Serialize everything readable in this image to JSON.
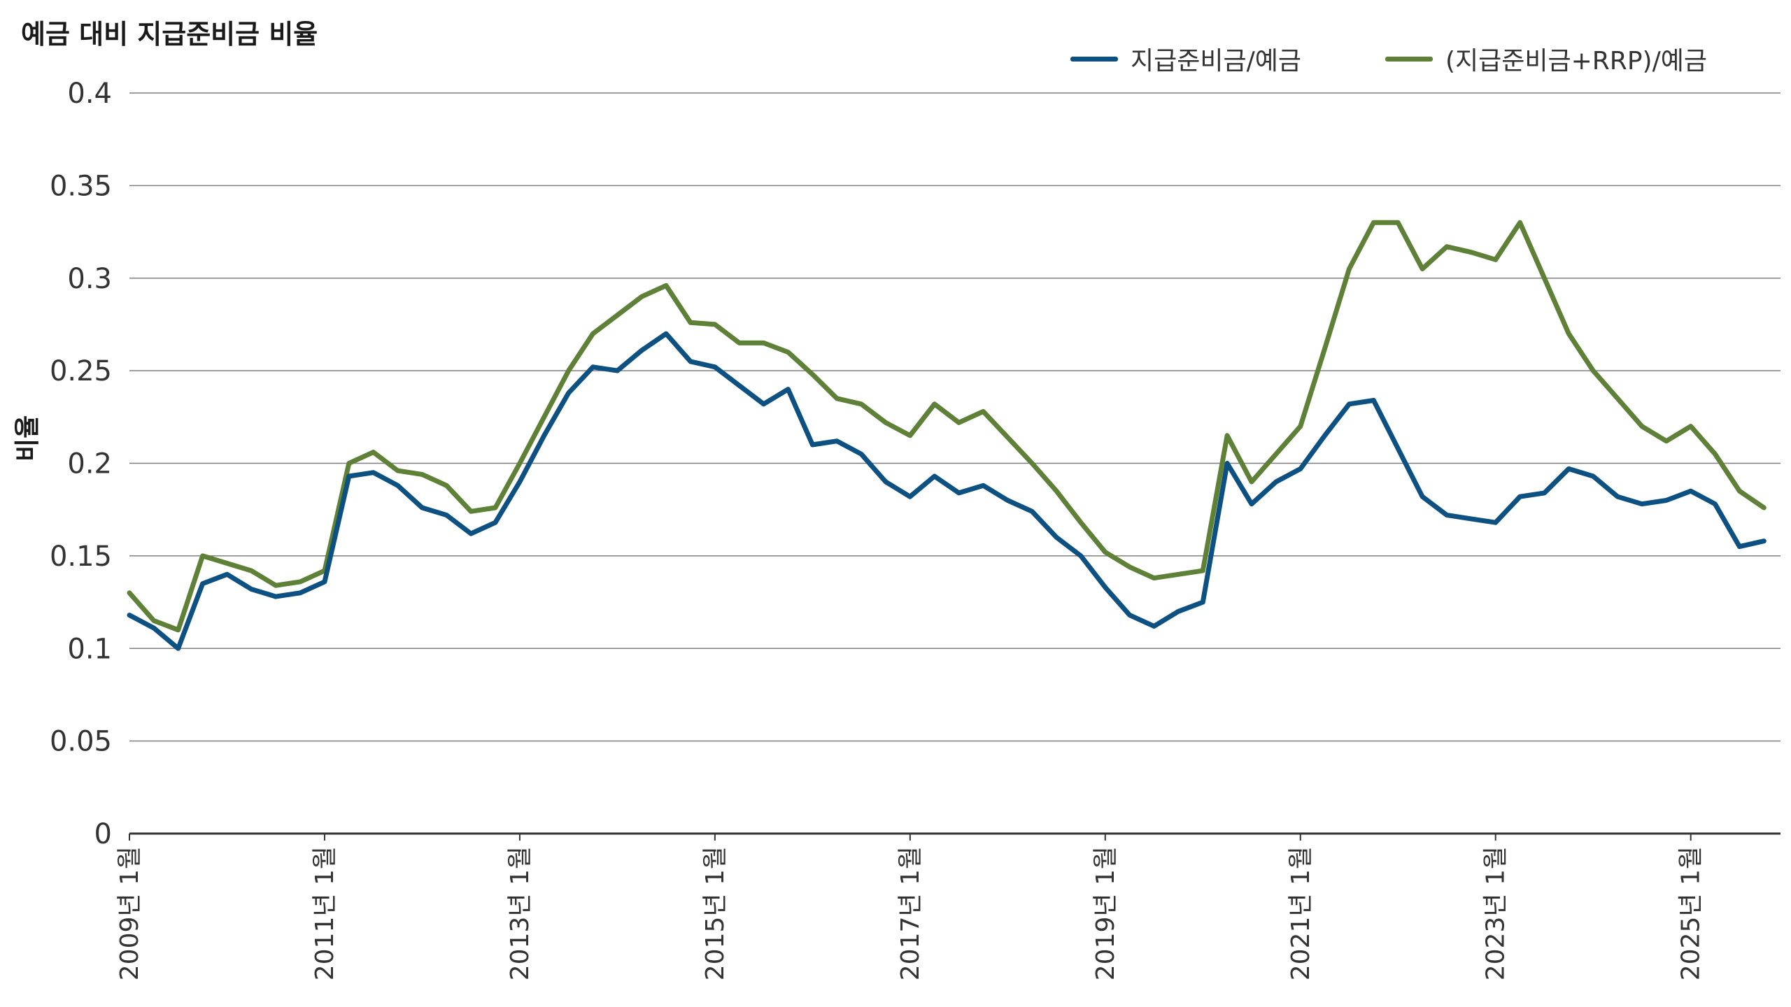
{
  "chart_data": {
    "type": "line",
    "title": "예금 대비 지급준비금 비율",
    "ylabel": "비율",
    "xlabel": "",
    "ylim": [
      0,
      0.4
    ],
    "yticks": [
      "0",
      "0.05",
      "0.1",
      "0.15",
      "0.2",
      "0.25",
      "0.3",
      "0.35",
      "0.4"
    ],
    "xtick_labels": [
      "2009년 1월",
      "2011년 1월",
      "2013년 1월",
      "2015년 1월",
      "2017년 1월",
      "2019년 1월",
      "2021년 1월",
      "2023년 1월",
      "2025년 1월"
    ],
    "grid": "horizontal",
    "legend_position": "top-right",
    "colors": {
      "reserves": "#0d5082",
      "reserves_rrp": "#5e8037",
      "grid": "#7f7f7f"
    },
    "x": [
      "2009-01",
      "2009-04",
      "2009-07",
      "2009-10",
      "2010-01",
      "2010-04",
      "2010-07",
      "2010-10",
      "2011-01",
      "2011-04",
      "2011-07",
      "2011-10",
      "2012-01",
      "2012-04",
      "2012-07",
      "2012-10",
      "2013-01",
      "2013-04",
      "2013-07",
      "2013-10",
      "2014-01",
      "2014-04",
      "2014-07",
      "2014-10",
      "2015-01",
      "2015-04",
      "2015-07",
      "2015-10",
      "2016-01",
      "2016-04",
      "2016-07",
      "2016-10",
      "2017-01",
      "2017-04",
      "2017-07",
      "2017-10",
      "2018-01",
      "2018-04",
      "2018-07",
      "2018-10",
      "2019-01",
      "2019-04",
      "2019-07",
      "2019-10",
      "2020-01",
      "2020-04",
      "2020-07",
      "2020-10",
      "2021-01",
      "2021-04",
      "2021-07",
      "2021-10",
      "2022-01",
      "2022-04",
      "2022-07",
      "2022-10",
      "2023-01",
      "2023-04",
      "2023-07",
      "2023-10",
      "2024-01",
      "2024-04",
      "2024-07",
      "2024-10",
      "2025-01",
      "2025-04",
      "2025-07",
      "2025-10"
    ],
    "series": [
      {
        "name": "지급준비금/예금",
        "values": [
          0.118,
          0.111,
          0.1,
          0.135,
          0.14,
          0.132,
          0.128,
          0.13,
          0.136,
          0.193,
          0.195,
          0.188,
          0.176,
          0.172,
          0.162,
          0.168,
          0.19,
          0.215,
          0.238,
          0.252,
          0.25,
          0.261,
          0.27,
          0.255,
          0.252,
          0.242,
          0.232,
          0.24,
          0.21,
          0.212,
          0.205,
          0.19,
          0.182,
          0.193,
          0.184,
          0.188,
          0.18,
          0.174,
          0.16,
          0.15,
          0.133,
          0.118,
          0.112,
          0.12,
          0.125,
          0.2,
          0.178,
          0.19,
          0.197,
          0.215,
          0.232,
          0.234,
          0.208,
          0.182,
          0.172,
          0.17,
          0.168,
          0.182,
          0.184,
          0.197,
          0.193,
          0.182,
          0.178,
          0.18,
          0.185,
          0.178,
          0.155,
          0.158
        ]
      },
      {
        "name": "(지급준비금+RRP)/예금",
        "values": [
          0.13,
          0.115,
          0.11,
          0.15,
          0.146,
          0.142,
          0.134,
          0.136,
          0.142,
          0.2,
          0.206,
          0.196,
          0.194,
          0.188,
          0.174,
          0.176,
          0.2,
          0.225,
          0.25,
          0.27,
          0.28,
          0.29,
          0.296,
          0.276,
          0.275,
          0.265,
          0.265,
          0.26,
          0.248,
          0.235,
          0.232,
          0.222,
          0.215,
          0.232,
          0.222,
          0.228,
          0.214,
          0.2,
          0.185,
          0.168,
          0.152,
          0.144,
          0.138,
          0.14,
          0.142,
          0.215,
          0.19,
          0.205,
          0.22,
          0.262,
          0.305,
          0.33,
          0.33,
          0.305,
          0.317,
          0.314,
          0.31,
          0.33,
          0.3,
          0.27,
          0.25,
          0.235,
          0.22,
          0.212,
          0.22,
          0.205,
          0.185,
          0.176
        ]
      }
    ]
  }
}
